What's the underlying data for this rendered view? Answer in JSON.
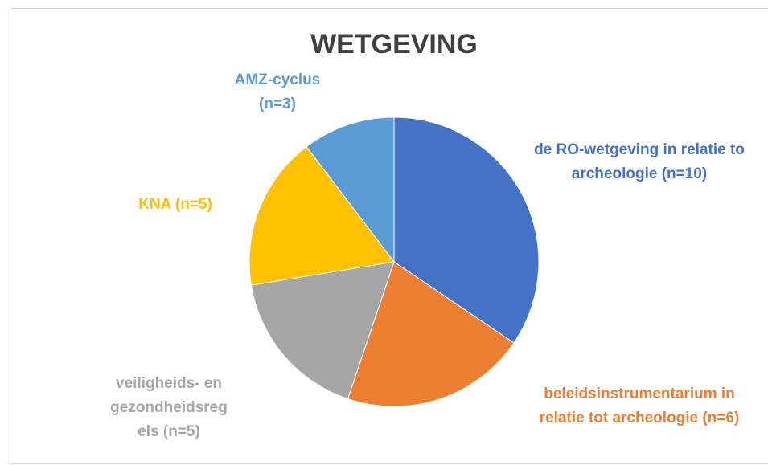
{
  "chart_data": {
    "type": "pie",
    "title": "WETGEVING",
    "categories": [
      [
        "de RO-wetgeving in relatie to",
        "archeologie (n=10)"
      ],
      [
        "beleidsinstrumentarium in",
        "relatie tot archeologie (n=6)"
      ],
      [
        "veiligheids- en",
        "gezondheidsreg",
        "els (n=5)"
      ],
      [
        "KNA (n=5)"
      ],
      [
        "AMZ-cyclus",
        "(n=3)"
      ]
    ],
    "values": [
      10,
      6,
      5,
      5,
      3
    ],
    "colors": [
      "#4472c4",
      "#ed7d31",
      "#a5a5a5",
      "#ffc000",
      "#5b9bd5"
    ]
  }
}
